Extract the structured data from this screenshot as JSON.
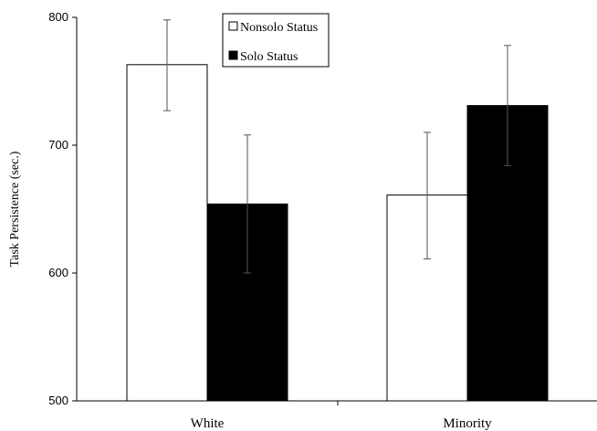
{
  "chart_data": {
    "type": "bar",
    "categories": [
      "White",
      "Minority"
    ],
    "series": [
      {
        "name": "Nonsolo Status",
        "values": [
          763,
          661
        ],
        "error_low": [
          727,
          611
        ],
        "error_high": [
          798,
          710
        ],
        "color": "#ffffff"
      },
      {
        "name": "Solo Status",
        "values": [
          654,
          731
        ],
        "error_low": [
          600,
          684
        ],
        "error_high": [
          708,
          778
        ],
        "color": "#000000"
      }
    ],
    "title": "",
    "xlabel": "",
    "ylabel": "Task Persistence (sec.)",
    "ylim": [
      500,
      800
    ],
    "yticks": [
      "500",
      "600",
      "700",
      "800"
    ],
    "grid": false,
    "legend_position": "top-center"
  }
}
